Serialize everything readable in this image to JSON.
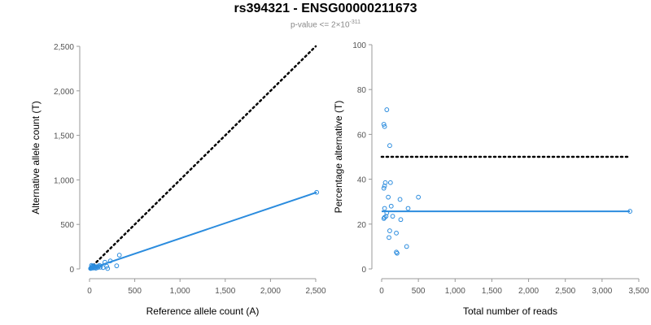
{
  "header": {
    "title": "rs394321 - ENSG00000211673",
    "pvalue_prefix": "p-value <= 2×10",
    "pvalue_exponent": "-311"
  },
  "colors": {
    "series": "#2b8cde",
    "reference_line": "#000000",
    "tick_text": "#555555",
    "axis": "#999999"
  },
  "chart_data": [
    {
      "type": "scatter",
      "title": "",
      "xlabel": "Reference allele count (A)",
      "ylabel": "Alternative allele count (T)",
      "xlim": [
        0,
        2500
      ],
      "ylim": [
        0,
        2500
      ],
      "xticks": [
        0,
        500,
        1000,
        1500,
        2000,
        2500
      ],
      "xtick_labels": [
        "0",
        "500",
        "1,000",
        "1,500",
        "2,000",
        "2,500"
      ],
      "yticks": [
        0,
        500,
        1000,
        1500,
        2000,
        2500
      ],
      "ytick_labels": [
        "0",
        "500",
        "1,000",
        "1,500",
        "2,000",
        "2,500"
      ],
      "grid": false,
      "points": [
        [
          12,
          5
        ],
        [
          18,
          8
        ],
        [
          22,
          40
        ],
        [
          25,
          15
        ],
        [
          30,
          30
        ],
        [
          35,
          10
        ],
        [
          40,
          22
        ],
        [
          45,
          35
        ],
        [
          50,
          12
        ],
        [
          55,
          28
        ],
        [
          60,
          18
        ],
        [
          70,
          8
        ],
        [
          80,
          25
        ],
        [
          90,
          15
        ],
        [
          100,
          30
        ],
        [
          110,
          40
        ],
        [
          120,
          20
        ],
        [
          150,
          15
        ],
        [
          170,
          75
        ],
        [
          190,
          30
        ],
        [
          200,
          5
        ],
        [
          230,
          90
        ],
        [
          300,
          35
        ],
        [
          330,
          155
        ],
        [
          2510,
          860
        ]
      ],
      "fit_line": [
        [
          0,
          0
        ],
        [
          2510,
          860
        ]
      ],
      "reference_line": [
        [
          0,
          0
        ],
        [
          2500,
          2500
        ]
      ]
    },
    {
      "type": "scatter",
      "title": "",
      "xlabel": "Total number of reads",
      "ylabel": "Percentage alternative (T)",
      "xlim": [
        0,
        3500
      ],
      "ylim": [
        0,
        100
      ],
      "xticks": [
        0,
        500,
        1000,
        1500,
        2000,
        2500,
        3000,
        3500
      ],
      "xtick_labels": [
        "0",
        "500",
        "1,000",
        "1,500",
        "2,000",
        "2,500",
        "3,000",
        "3,500"
      ],
      "yticks": [
        0,
        20,
        40,
        60,
        80,
        100
      ],
      "ytick_labels": [
        "0",
        "20",
        "40",
        "60",
        "80",
        "100"
      ],
      "grid": false,
      "points": [
        [
          30,
          64.5
        ],
        [
          40,
          63.5
        ],
        [
          70,
          71
        ],
        [
          110,
          55
        ],
        [
          50,
          38.5
        ],
        [
          40,
          37
        ],
        [
          30,
          36
        ],
        [
          120,
          38.5
        ],
        [
          90,
          32
        ],
        [
          250,
          31
        ],
        [
          500,
          32
        ],
        [
          360,
          27
        ],
        [
          130,
          28
        ],
        [
          40,
          27
        ],
        [
          70,
          25
        ],
        [
          60,
          23.5
        ],
        [
          40,
          23
        ],
        [
          30,
          22.5
        ],
        [
          150,
          23.5
        ],
        [
          260,
          22
        ],
        [
          110,
          17
        ],
        [
          200,
          16
        ],
        [
          100,
          14
        ],
        [
          340,
          10
        ],
        [
          200,
          7.5
        ],
        [
          210,
          7
        ],
        [
          3380,
          25.7
        ]
      ],
      "fit_line": [
        [
          0,
          25.7
        ],
        [
          3380,
          25.7
        ]
      ],
      "reference_line": [
        [
          0,
          50
        ],
        [
          3350,
          50
        ]
      ]
    }
  ]
}
